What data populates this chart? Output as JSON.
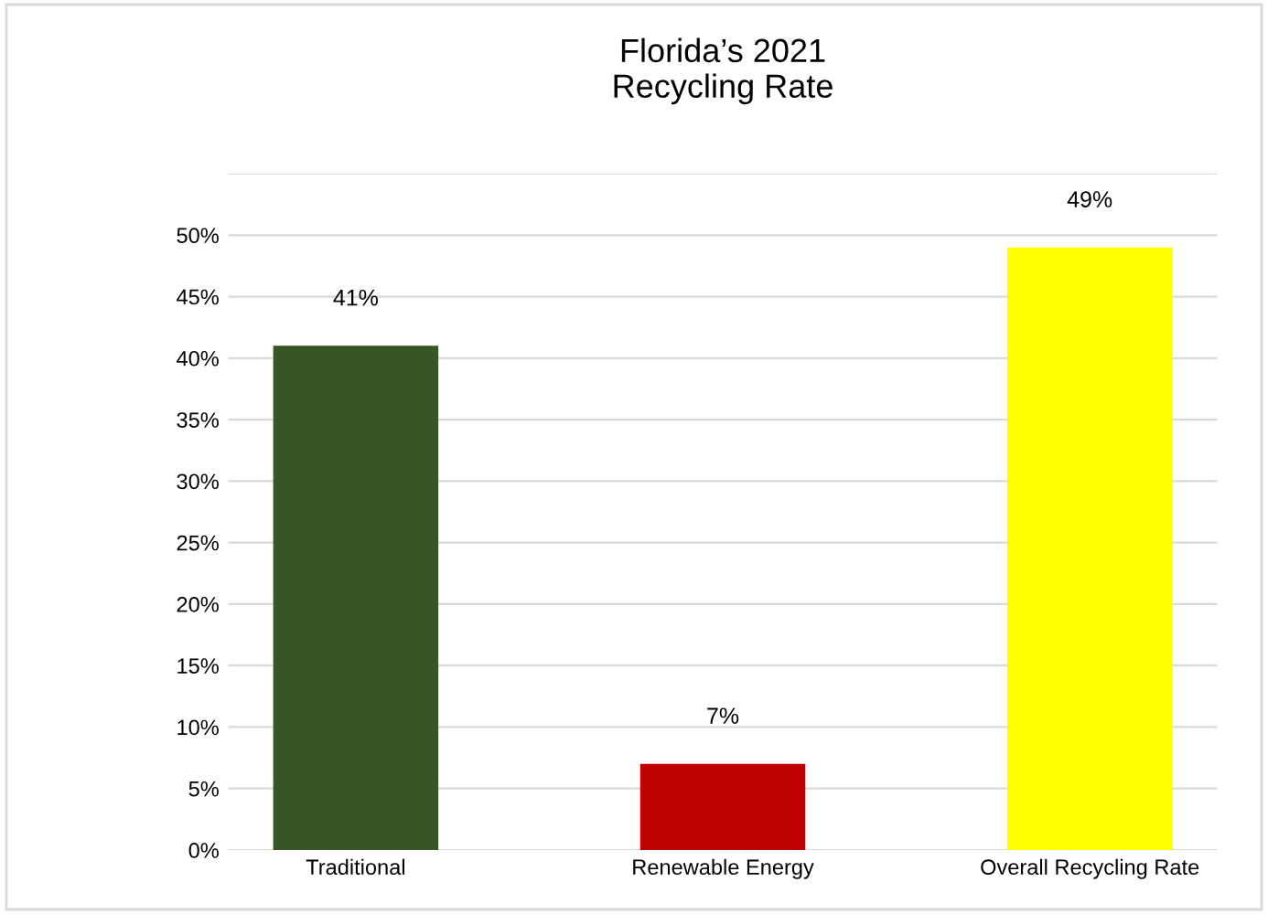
{
  "chart_data": {
    "type": "bar",
    "title": "Florida’s 2021\nRecycling Rate",
    "categories": [
      "Traditional",
      "Renewable Energy",
      "Overall Recycling Rate"
    ],
    "values": [
      41,
      7,
      49
    ],
    "colors": [
      "#375623",
      "#c00000",
      "#ffff00"
    ],
    "value_labels": [
      "41%",
      "7%",
      "49%"
    ],
    "ylim": [
      0,
      55
    ],
    "yticks": [
      {
        "value": 0,
        "label": "0%"
      },
      {
        "value": 5,
        "label": "5%"
      },
      {
        "value": 10,
        "label": "10%"
      },
      {
        "value": 15,
        "label": "15%"
      },
      {
        "value": 20,
        "label": "20%"
      },
      {
        "value": 25,
        "label": "25%"
      },
      {
        "value": 30,
        "label": "30%"
      },
      {
        "value": 35,
        "label": "35%"
      },
      {
        "value": 40,
        "label": "40%"
      },
      {
        "value": 45,
        "label": "45%"
      },
      {
        "value": 50,
        "label": "50%"
      },
      {
        "value": 55,
        "label": null
      }
    ],
    "grid": "y"
  }
}
